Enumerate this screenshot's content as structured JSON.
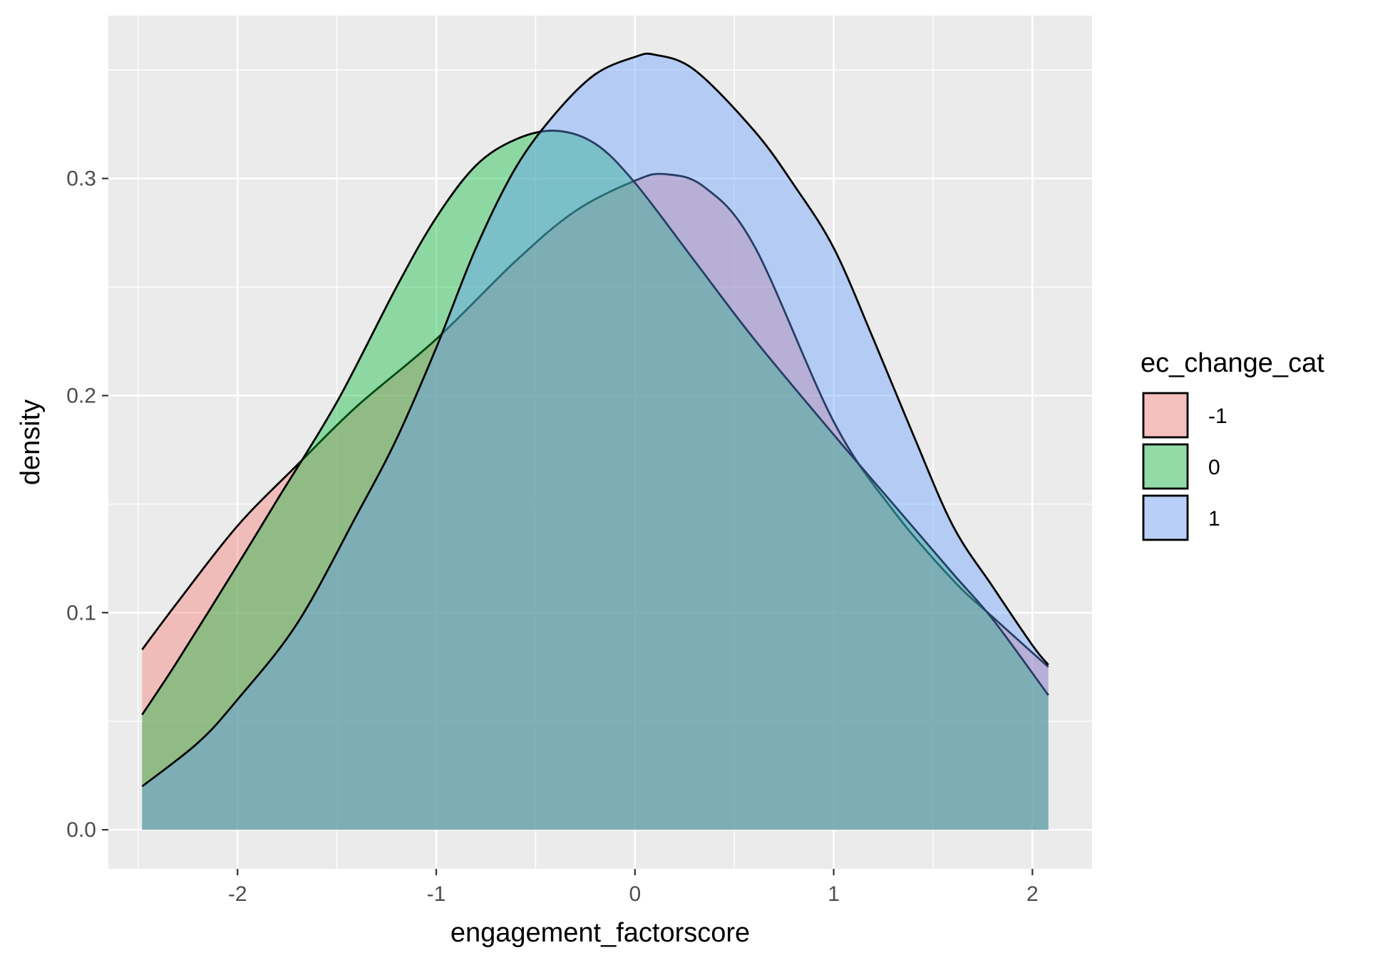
{
  "chart_data": {
    "type": "area",
    "subtype": "density",
    "xlabel": "engagement_factorscore",
    "ylabel": "density",
    "xlim": [
      -2.65,
      2.3
    ],
    "ylim": [
      -0.018,
      0.375
    ],
    "x_ticks": [
      -2,
      -1,
      0,
      1,
      2
    ],
    "x_tick_labels": [
      "-2",
      "-1",
      "0",
      "1",
      "2"
    ],
    "y_ticks": [
      0.0,
      0.1,
      0.2,
      0.3
    ],
    "y_tick_labels": [
      "0.0",
      "0.1",
      "0.2",
      "0.3"
    ],
    "grid": true,
    "panel_background": "#ebebeb",
    "grid_color": "#ffffff",
    "legend": {
      "title": "ec_change_cat",
      "position": "right"
    },
    "series": [
      {
        "name": "-1",
        "color": "#f8766d",
        "points": [
          [
            -2.48,
            0.083
          ],
          [
            -2.3,
            0.105
          ],
          [
            -2.0,
            0.14
          ],
          [
            -1.7,
            0.168
          ],
          [
            -1.4,
            0.195
          ],
          [
            -1.0,
            0.226
          ],
          [
            -0.6,
            0.262
          ],
          [
            -0.3,
            0.285
          ],
          [
            0.0,
            0.299
          ],
          [
            0.15,
            0.302
          ],
          [
            0.35,
            0.296
          ],
          [
            0.6,
            0.269
          ],
          [
            1.0,
            0.188
          ],
          [
            1.3,
            0.147
          ],
          [
            1.6,
            0.115
          ],
          [
            1.8,
            0.098
          ],
          [
            2.08,
            0.075
          ]
        ]
      },
      {
        "name": "0",
        "color": "#00ba38",
        "points": [
          [
            -2.48,
            0.053
          ],
          [
            -2.3,
            0.078
          ],
          [
            -2.0,
            0.122
          ],
          [
            -1.8,
            0.152
          ],
          [
            -1.5,
            0.197
          ],
          [
            -1.2,
            0.25
          ],
          [
            -1.0,
            0.282
          ],
          [
            -0.8,
            0.306
          ],
          [
            -0.6,
            0.318
          ],
          [
            -0.4,
            0.322
          ],
          [
            -0.2,
            0.316
          ],
          [
            0.0,
            0.298
          ],
          [
            0.3,
            0.262
          ],
          [
            0.6,
            0.226
          ],
          [
            1.0,
            0.182
          ],
          [
            1.3,
            0.15
          ],
          [
            1.6,
            0.118
          ],
          [
            1.8,
            0.097
          ],
          [
            2.08,
            0.062
          ]
        ]
      },
      {
        "name": "1",
        "color": "#619cff",
        "points": [
          [
            -2.48,
            0.02
          ],
          [
            -2.2,
            0.04
          ],
          [
            -2.0,
            0.06
          ],
          [
            -1.7,
            0.095
          ],
          [
            -1.4,
            0.145
          ],
          [
            -1.2,
            0.18
          ],
          [
            -1.0,
            0.222
          ],
          [
            -0.8,
            0.268
          ],
          [
            -0.6,
            0.305
          ],
          [
            -0.4,
            0.33
          ],
          [
            -0.2,
            0.348
          ],
          [
            0.0,
            0.356
          ],
          [
            0.1,
            0.357
          ],
          [
            0.3,
            0.35
          ],
          [
            0.6,
            0.322
          ],
          [
            0.8,
            0.297
          ],
          [
            1.0,
            0.268
          ],
          [
            1.2,
            0.226
          ],
          [
            1.4,
            0.182
          ],
          [
            1.6,
            0.14
          ],
          [
            1.8,
            0.112
          ],
          [
            2.0,
            0.085
          ],
          [
            2.08,
            0.076
          ]
        ]
      }
    ]
  }
}
